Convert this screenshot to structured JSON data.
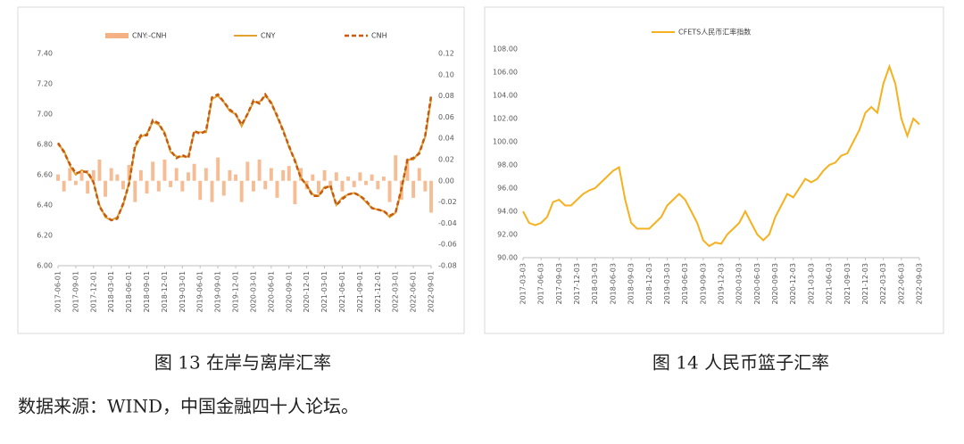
{
  "chart_data": [
    {
      "type": "line",
      "legend": "top",
      "categories": [
        "2017-06-01",
        null,
        null,
        "2017-09-01",
        null,
        null,
        "2017-12-01",
        null,
        null,
        "2018-03-01",
        null,
        null,
        "2018-06-01",
        null,
        null,
        "2018-09-01",
        null,
        null,
        "2018-12-01",
        null,
        null,
        "2019-03-01",
        null,
        null,
        "2019-06-01",
        null,
        null,
        "2019-09-01",
        null,
        null,
        "2019-12-01",
        null,
        null,
        "2020-03-01",
        null,
        null,
        "2020-06-01",
        null,
        null,
        "2020-09-01",
        null,
        null,
        "2020-12-01",
        null,
        null,
        "2021-03-01",
        null,
        null,
        "2021-06-01",
        null,
        null,
        "2021-09-01",
        null,
        null,
        "2021-12-01",
        null,
        null,
        "2022-03-01",
        null,
        null,
        "2022-06-01",
        null,
        null,
        "2022-09-01"
      ],
      "series": [
        {
          "name": "CNY:-CNH",
          "type": "bar",
          "axis": "y2",
          "color": "#f4b183",
          "values": [
            0.006,
            -0.01,
            0.012,
            -0.004,
            0.008,
            -0.012,
            0.01,
            0.02,
            -0.015,
            0.012,
            0.006,
            -0.008,
            0.015,
            -0.02,
            0.01,
            -0.012,
            0.018,
            -0.01,
            0.02,
            -0.006,
            0.012,
            -0.01,
            0.008,
            0.016,
            -0.018,
            0.012,
            -0.02,
            0.022,
            -0.014,
            0.01,
            0.006,
            -0.02,
            0.018,
            -0.01,
            0.02,
            -0.008,
            0.012,
            -0.016,
            0.01,
            0.014,
            -0.022,
            0.012,
            -0.008,
            0.006,
            -0.012,
            0.01,
            -0.006,
            0.008,
            -0.01,
            0.004,
            -0.006,
            0.008,
            -0.004,
            0.006,
            -0.008,
            0.004,
            -0.02,
            0.024,
            -0.018,
            0.02,
            -0.016,
            0.012,
            -0.01,
            -0.03
          ]
        },
        {
          "name": "CNY",
          "color": "#e3a12f",
          "values": [
            6.8,
            6.76,
            6.66,
            6.6,
            6.63,
            6.61,
            6.55,
            6.4,
            6.32,
            6.3,
            6.32,
            6.4,
            6.55,
            6.78,
            6.85,
            6.87,
            6.95,
            6.93,
            6.88,
            6.75,
            6.72,
            6.72,
            6.72,
            6.88,
            6.88,
            6.88,
            7.1,
            7.12,
            7.08,
            7.02,
            7.0,
            6.92,
            7.0,
            7.08,
            7.08,
            7.12,
            7.08,
            6.98,
            6.9,
            6.78,
            6.7,
            6.58,
            6.53,
            6.47,
            6.46,
            6.52,
            6.52,
            6.4,
            6.45,
            6.47,
            6.48,
            6.46,
            6.42,
            6.38,
            6.37,
            6.36,
            6.32,
            6.35,
            6.5,
            6.7,
            6.7,
            6.75,
            6.85,
            7.1
          ]
        },
        {
          "name": "CNH",
          "color": "#c55a11",
          "dash": true,
          "values": [
            6.81,
            6.75,
            6.67,
            6.61,
            6.62,
            6.62,
            6.55,
            6.39,
            6.33,
            6.3,
            6.31,
            6.41,
            6.54,
            6.79,
            6.86,
            6.86,
            6.96,
            6.94,
            6.87,
            6.76,
            6.71,
            6.73,
            6.71,
            6.89,
            6.87,
            6.89,
            7.11,
            7.13,
            7.08,
            7.03,
            7.0,
            6.93,
            7.0,
            7.09,
            7.07,
            7.13,
            7.07,
            6.99,
            6.89,
            6.79,
            6.69,
            6.58,
            6.53,
            6.46,
            6.46,
            6.51,
            6.53,
            6.4,
            6.44,
            6.47,
            6.48,
            6.46,
            6.43,
            6.38,
            6.37,
            6.36,
            6.33,
            6.35,
            6.51,
            6.7,
            6.71,
            6.74,
            6.86,
            7.12
          ]
        }
      ],
      "ylim": [
        6.0,
        7.4
      ],
      "yticks": [
        {
          "value": 6.0,
          "label": "6.00"
        },
        {
          "value": 6.2,
          "label": "6.20"
        },
        {
          "value": 6.4,
          "label": "6.40"
        },
        {
          "value": 6.6,
          "label": "6.60"
        },
        {
          "value": 6.8,
          "label": "6.80"
        },
        {
          "value": 7.0,
          "label": "7.00"
        },
        {
          "value": 7.2,
          "label": "7.20"
        },
        {
          "value": 7.4,
          "label": "7.40"
        }
      ],
      "y2lim": [
        -0.08,
        0.12
      ],
      "y2ticks": [
        {
          "value": -0.08,
          "label": "-0.08"
        },
        {
          "value": -0.06,
          "label": "-0.06"
        },
        {
          "value": -0.04,
          "label": "-0.04"
        },
        {
          "value": -0.02,
          "label": "-0.02"
        },
        {
          "value": 0,
          "label": "0.00"
        },
        {
          "value": 0.02,
          "label": "0.02"
        },
        {
          "value": 0.04,
          "label": "0.04"
        },
        {
          "value": 0.06,
          "label": "0.06"
        },
        {
          "value": 0.08,
          "label": "0.08"
        },
        {
          "value": 0.1,
          "label": "0.10"
        },
        {
          "value": 0.12,
          "label": "0.12"
        }
      ]
    },
    {
      "type": "line",
      "legend": "top",
      "categories": [
        "2017-03-03",
        null,
        null,
        "2017-06-03",
        null,
        null,
        "2017-09-03",
        null,
        null,
        "2017-12-03",
        null,
        null,
        "2018-03-03",
        null,
        null,
        "2018-06-03",
        null,
        null,
        "2018-09-03",
        null,
        null,
        "2018-12-03",
        null,
        null,
        "2019-03-03",
        null,
        null,
        "2019-06-03",
        null,
        null,
        "2019-09-03",
        null,
        null,
        "2019-12-03",
        null,
        null,
        "2020-03-03",
        null,
        null,
        "2020-06-03",
        null,
        null,
        "2020-09-03",
        null,
        null,
        "2020-12-03",
        null,
        null,
        "2021-03-03",
        null,
        null,
        "2021-06-03",
        null,
        null,
        "2021-09-03",
        null,
        null,
        "2021-12-03",
        null,
        null,
        "2022-03-03",
        null,
        null,
        "2022-06-03",
        null,
        null,
        "2022-09-03"
      ],
      "series": [
        {
          "name": "CFETS人民币汇率指数",
          "color": "#f5b11f",
          "values": [
            94.0,
            93.0,
            92.8,
            93.0,
            93.5,
            94.8,
            95.0,
            94.5,
            94.5,
            95.0,
            95.5,
            95.8,
            96.0,
            96.5,
            97.0,
            97.5,
            97.8,
            95.0,
            93.0,
            92.5,
            92.5,
            92.5,
            93.0,
            93.5,
            94.5,
            95.0,
            95.5,
            95.0,
            94.0,
            93.0,
            91.5,
            91.0,
            91.3,
            91.2,
            92.0,
            92.5,
            93.0,
            94.0,
            93.0,
            92.0,
            91.5,
            92.0,
            93.5,
            94.5,
            95.5,
            95.2,
            96.0,
            96.8,
            96.5,
            96.8,
            97.5,
            98.0,
            98.2,
            98.8,
            99.0,
            100.0,
            101.0,
            102.5,
            103.0,
            102.5,
            105.0,
            106.5,
            105.0,
            102.0,
            100.5,
            102.0,
            101.5
          ]
        }
      ],
      "ylim": [
        90,
        108
      ],
      "yticks": [
        {
          "value": 90,
          "label": "90.00"
        },
        {
          "value": 92,
          "label": "92.00"
        },
        {
          "value": 94,
          "label": "94.00"
        },
        {
          "value": 96,
          "label": "96.00"
        },
        {
          "value": 98,
          "label": "98.00"
        },
        {
          "value": 100,
          "label": "100.00"
        },
        {
          "value": 102,
          "label": "102.00"
        },
        {
          "value": 104,
          "label": "104.00"
        },
        {
          "value": 106,
          "label": "106.00"
        },
        {
          "value": 108,
          "label": "108.00"
        }
      ]
    }
  ],
  "captions": [
    "图 13  在岸与离岸汇率",
    "图 14  人民币篮子汇率"
  ],
  "source": "数据来源：WIND，中国金融四十人论坛。"
}
